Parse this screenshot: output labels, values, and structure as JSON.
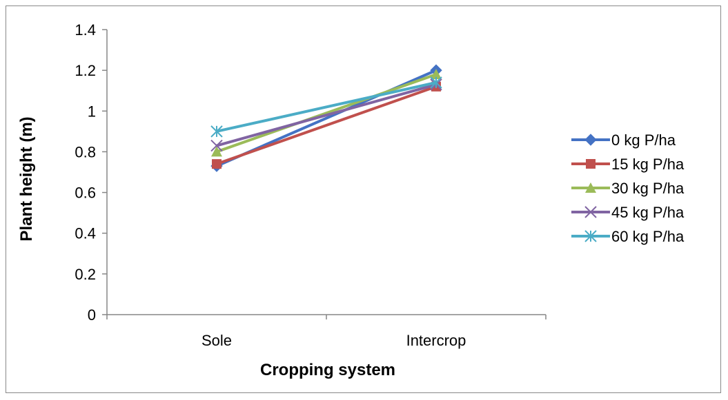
{
  "chart_data": {
    "type": "line",
    "categories": [
      "Sole",
      "Intercrop"
    ],
    "series": [
      {
        "name": "0 kg P/ha",
        "values": [
          0.73,
          1.2
        ],
        "color": "#4472C4",
        "marker": "diamond"
      },
      {
        "name": "15 kg P/ha",
        "values": [
          0.74,
          1.12
        ],
        "color": "#C0504D",
        "marker": "square"
      },
      {
        "name": "30 kg P/ha",
        "values": [
          0.8,
          1.18
        ],
        "color": "#9BBB59",
        "marker": "triangle"
      },
      {
        "name": "45 kg P/ha",
        "values": [
          0.83,
          1.13
        ],
        "color": "#8064A2",
        "marker": "x"
      },
      {
        "name": "60 kg P/ha",
        "values": [
          0.9,
          1.14
        ],
        "color": "#4BACC6",
        "marker": "star"
      }
    ],
    "xlabel": "Cropping system",
    "ylabel": "Plant height (m)",
    "ylim": [
      0,
      1.4
    ],
    "yticks": [
      "0",
      "0.2",
      "0.4",
      "0.6",
      "0.8",
      "1",
      "1.2",
      "1.4"
    ],
    "grid": false,
    "legend_position": "right"
  }
}
